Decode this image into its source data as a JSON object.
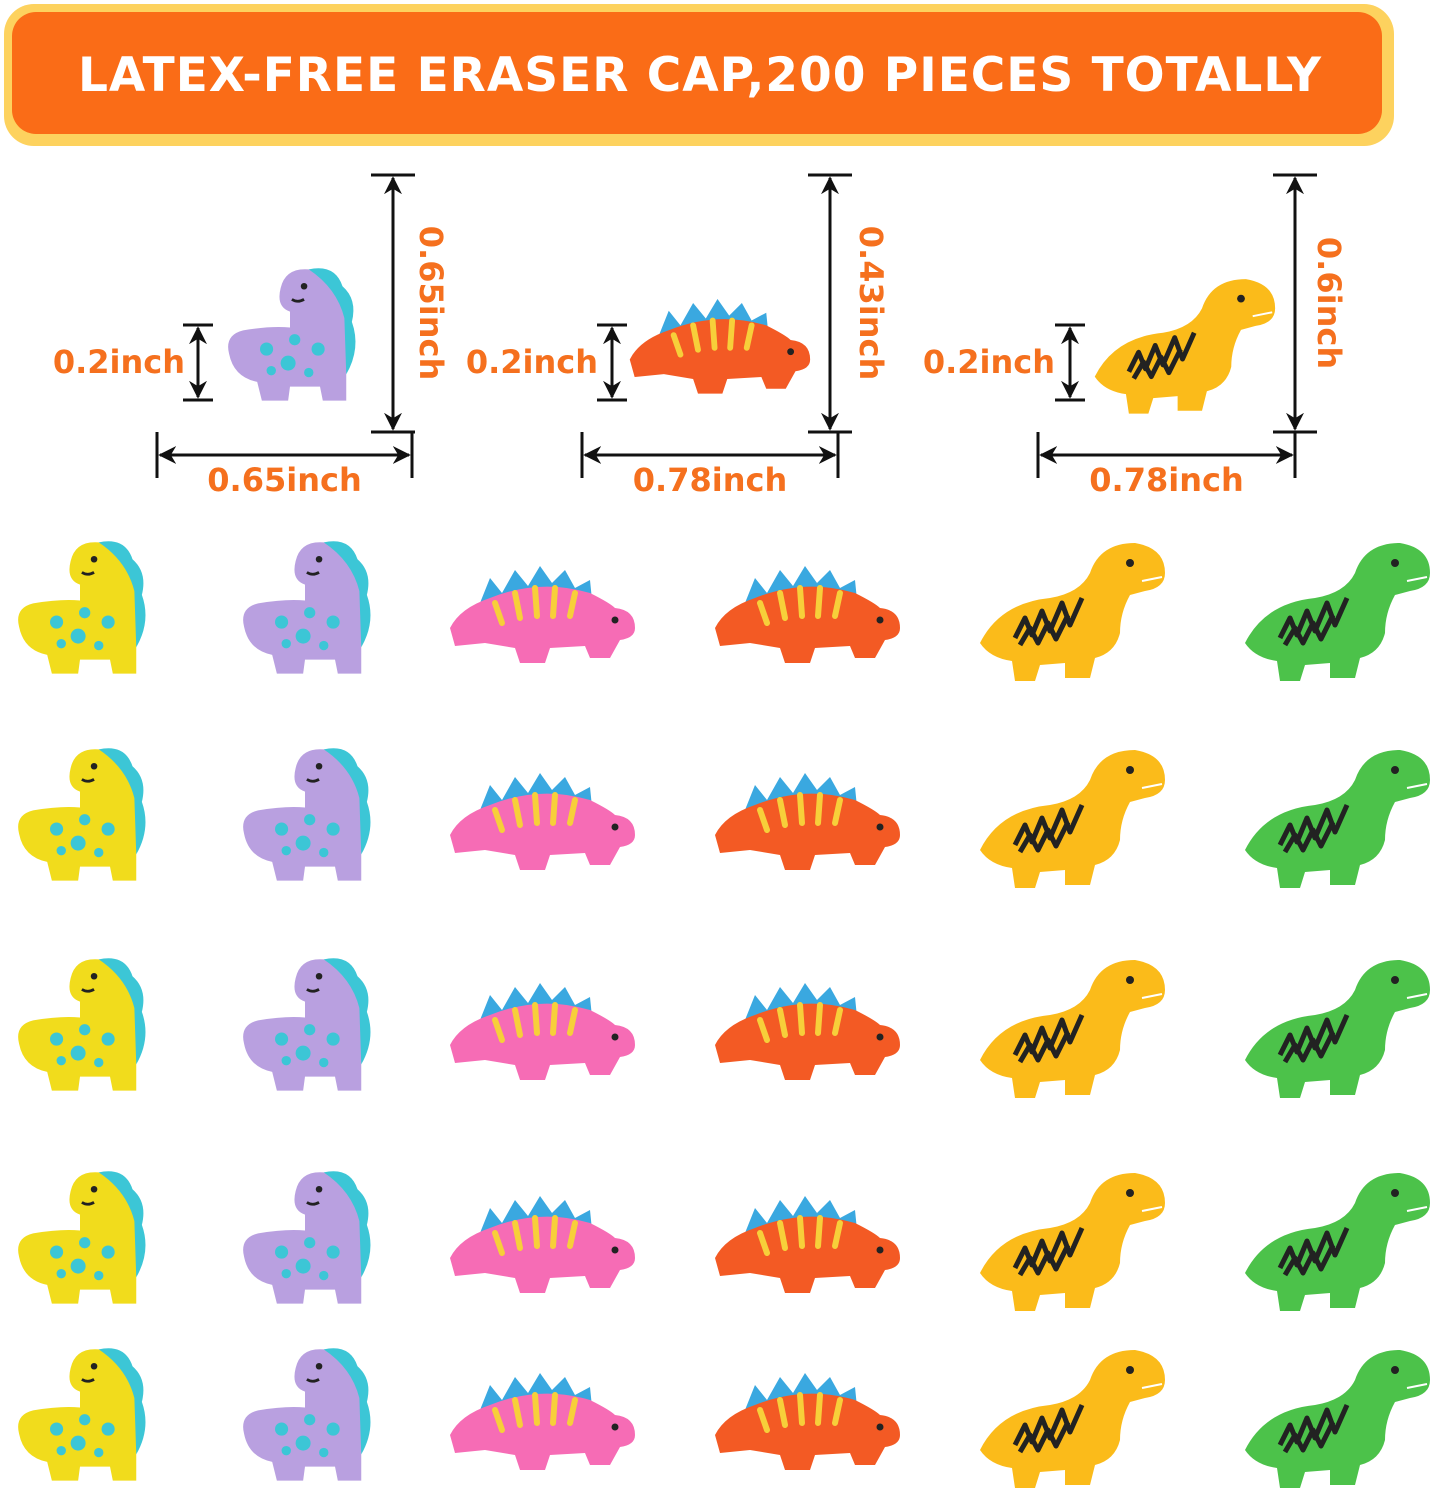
{
  "banner": {
    "title": "LATEX-FREE ERASER CAP,200 PIECES TOTALLY",
    "fill": "#fa6c17",
    "border": "#fdd25e"
  },
  "label_color": "#f5701e",
  "dimensions": [
    {
      "type": "sauropod",
      "color": "#b9a0e0",
      "height": "0.65inch",
      "width": "0.65inch",
      "thickness": "0.2inch"
    },
    {
      "type": "stegosaurus",
      "color": "#f35a24",
      "height": "0.43inch",
      "width": "0.78inch",
      "thickness": "0.2inch"
    },
    {
      "type": "trex",
      "color": "#fbbb1a",
      "height": "0.6inch",
      "width": "0.78inch",
      "thickness": "0.2inch"
    }
  ],
  "grid": {
    "rows": 5,
    "columns": [
      {
        "type": "sauropod",
        "color": "#f1dc1c"
      },
      {
        "type": "sauropod",
        "color": "#b9a0e0"
      },
      {
        "type": "stegosaurus",
        "color": "#f66cb5"
      },
      {
        "type": "stegosaurus",
        "color": "#f35a24"
      },
      {
        "type": "trex",
        "color": "#fbbb1a"
      },
      {
        "type": "trex",
        "color": "#4cc24a"
      }
    ]
  }
}
